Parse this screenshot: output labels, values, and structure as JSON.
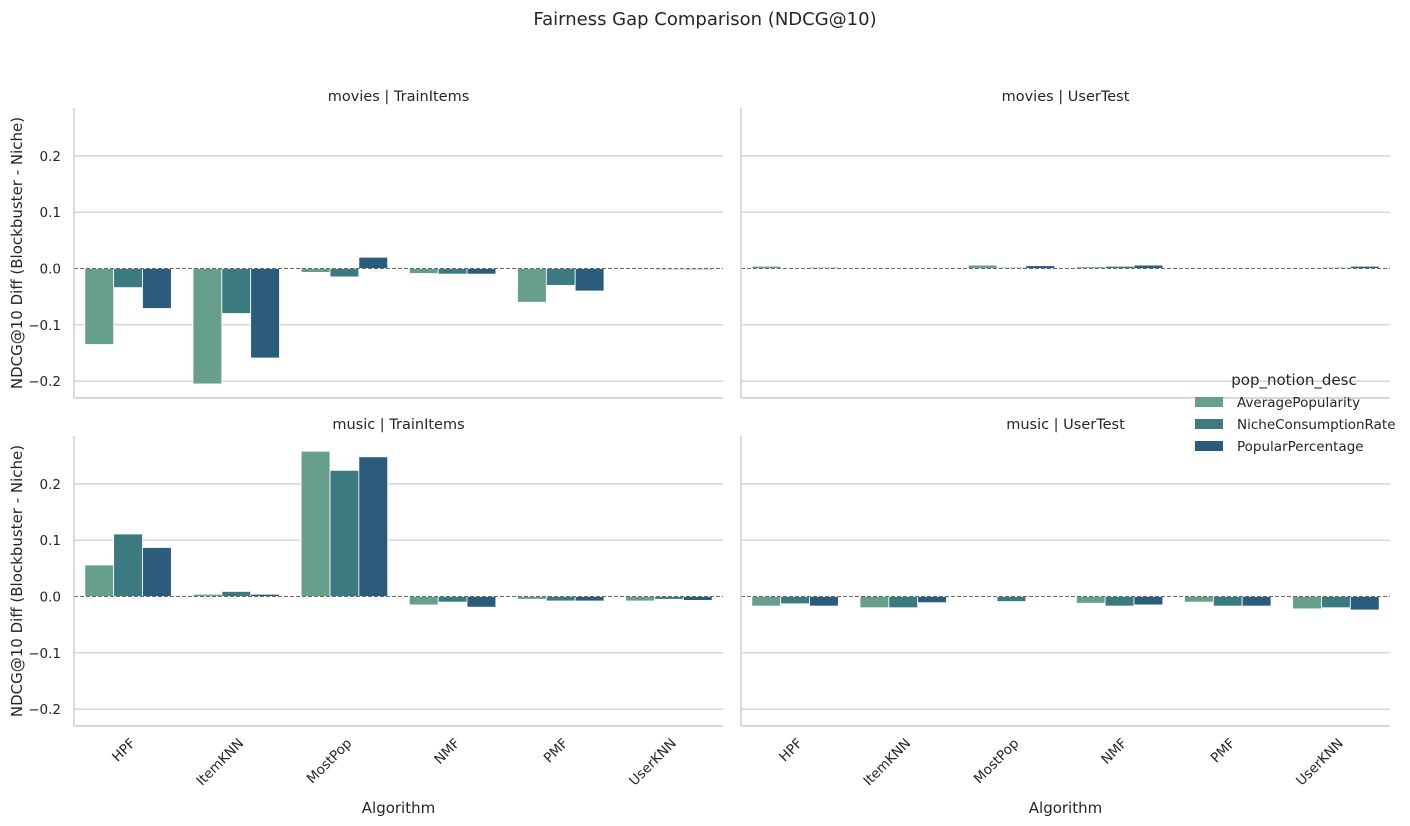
{
  "chart_data": {
    "type": "bar",
    "title": "Fairness Gap Comparison (NDCG@10)",
    "xlabel": "Algorithm",
    "ylabel": "NDCG@10 Diff (Blockbuster - Niche)",
    "ylim": [
      -0.23,
      0.285
    ],
    "yticks": [
      -0.2,
      -0.1,
      0.0,
      0.1,
      0.2
    ],
    "ytick_labels": [
      "−0.2",
      "−0.1",
      "0.0",
      "0.1",
      "0.2"
    ],
    "grid": "horizontal",
    "reference_line": 0,
    "categories": [
      "HPF",
      "ItemKNN",
      "MostPop",
      "NMF",
      "PMF",
      "UserKNN"
    ],
    "legend": {
      "title": "pop_notion_desc",
      "placement": "right",
      "entries": [
        "AveragePopularity",
        "NicheConsumptionRate",
        "PopularPercentage"
      ]
    },
    "colors": [
      "#66a08c",
      "#3b7b80",
      "#2b5c7b"
    ],
    "panels": [
      {
        "title": "movies | TrainItems",
        "series": [
          {
            "name": "AveragePopularity",
            "values": [
              -0.135,
              -0.205,
              -0.007,
              -0.009,
              -0.06,
              0.0
            ]
          },
          {
            "name": "NicheConsumptionRate",
            "values": [
              -0.034,
              -0.08,
              -0.015,
              -0.01,
              -0.03,
              -0.002
            ]
          },
          {
            "name": "PopularPercentage",
            "values": [
              -0.071,
              -0.159,
              0.02,
              -0.01,
              -0.04,
              -0.002
            ]
          }
        ]
      },
      {
        "title": "movies | UserTest",
        "series": [
          {
            "name": "AveragePopularity",
            "values": [
              0.004,
              0.0,
              0.006,
              0.003,
              0.0,
              0.001
            ]
          },
          {
            "name": "NicheConsumptionRate",
            "values": [
              0.001,
              0.0,
              0.002,
              0.004,
              0.0,
              0.002
            ]
          },
          {
            "name": "PopularPercentage",
            "values": [
              0.002,
              0.0,
              0.005,
              0.006,
              0.0,
              0.004
            ]
          }
        ]
      },
      {
        "title": "music | TrainItems",
        "series": [
          {
            "name": "AveragePopularity",
            "values": [
              0.056,
              0.004,
              0.258,
              -0.015,
              -0.005,
              -0.008
            ]
          },
          {
            "name": "NicheConsumptionRate",
            "values": [
              0.111,
              0.009,
              0.224,
              -0.01,
              -0.008,
              -0.005
            ]
          },
          {
            "name": "PopularPercentage",
            "values": [
              0.087,
              0.004,
              0.248,
              -0.019,
              -0.008,
              -0.007
            ]
          }
        ]
      },
      {
        "title": "music | UserTest",
        "series": [
          {
            "name": "AveragePopularity",
            "values": [
              -0.017,
              -0.02,
              0.0,
              -0.012,
              -0.01,
              -0.022
            ]
          },
          {
            "name": "NicheConsumptionRate",
            "values": [
              -0.013,
              -0.02,
              -0.009,
              -0.017,
              -0.017,
              -0.02
            ]
          },
          {
            "name": "PopularPercentage",
            "values": [
              -0.017,
              -0.011,
              0.0,
              -0.015,
              -0.017,
              -0.024
            ]
          }
        ]
      }
    ]
  }
}
